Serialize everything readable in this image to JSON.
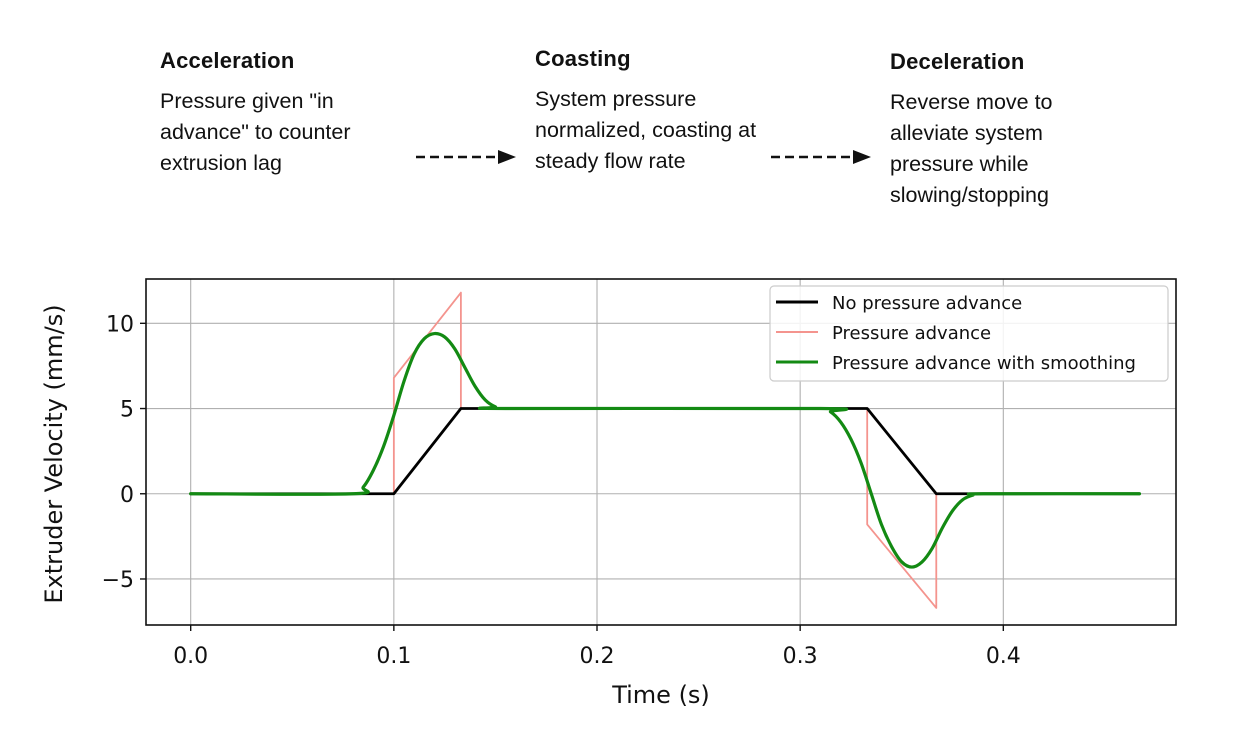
{
  "phases": [
    {
      "title": "Acceleration",
      "desc": "Pressure given \"in advance\" to counter extrusion lag"
    },
    {
      "title": "Coasting",
      "desc": "System pressure normalized, coasting at steady flow rate"
    },
    {
      "title": "Deceleration",
      "desc": "Reverse move to alleviate system pressure while slowing/stopping"
    }
  ],
  "colors": {
    "no_pa": "#000000",
    "pa": "#f4948e",
    "pa_smooth": "#138a13",
    "grid": "#b0b0b0",
    "text": "#111111"
  },
  "chart_data": {
    "type": "line",
    "xlabel": "Time (s)",
    "ylabel": "Extruder Velocity (mm/s)",
    "xlim": [
      -0.022,
      0.485
    ],
    "ylim": [
      -7.7,
      12.6
    ],
    "xticks": [
      0.0,
      0.1,
      0.2,
      0.3,
      0.4
    ],
    "xtick_labels": [
      "0.0",
      "0.1",
      "0.2",
      "0.3",
      "0.4"
    ],
    "yticks": [
      -5,
      0,
      5,
      10
    ],
    "ytick_labels": [
      "−5",
      "0",
      "5",
      "10"
    ],
    "grid": true,
    "legend_position": "top-right",
    "series": [
      {
        "name": "No pressure advance",
        "color": "#000000",
        "x": [
          0.0,
          0.1,
          0.133,
          0.333,
          0.367,
          0.467
        ],
        "y": [
          0,
          0,
          5,
          5,
          0,
          0
        ]
      },
      {
        "name": "Pressure advance",
        "color": "#f4948e",
        "x": [
          0.0,
          0.1,
          0.1,
          0.133,
          0.133,
          0.333,
          0.333,
          0.367,
          0.367,
          0.467
        ],
        "y": [
          0,
          0,
          6.8,
          11.8,
          5,
          5,
          -1.8,
          -6.7,
          0,
          0
        ]
      },
      {
        "name": "Pressure advance with smoothing",
        "color": "#138a13",
        "x": [
          0.0,
          0.08,
          0.085,
          0.09,
          0.095,
          0.1,
          0.105,
          0.11,
          0.115,
          0.12,
          0.125,
          0.13,
          0.135,
          0.14,
          0.145,
          0.15,
          0.155,
          0.31,
          0.315,
          0.32,
          0.325,
          0.33,
          0.335,
          0.34,
          0.345,
          0.35,
          0.355,
          0.36,
          0.365,
          0.37,
          0.375,
          0.38,
          0.385,
          0.39,
          0.467
        ],
        "y": [
          0,
          0,
          0.4,
          1.4,
          2.8,
          4.6,
          6.6,
          8.2,
          9.1,
          9.4,
          9.2,
          8.5,
          7.4,
          6.3,
          5.5,
          5.1,
          5.0,
          5.0,
          4.8,
          4.2,
          3.2,
          1.8,
          0.0,
          -1.8,
          -3.1,
          -4.0,
          -4.3,
          -4.0,
          -3.2,
          -2.0,
          -1.0,
          -0.35,
          -0.08,
          0,
          0
        ]
      }
    ]
  }
}
